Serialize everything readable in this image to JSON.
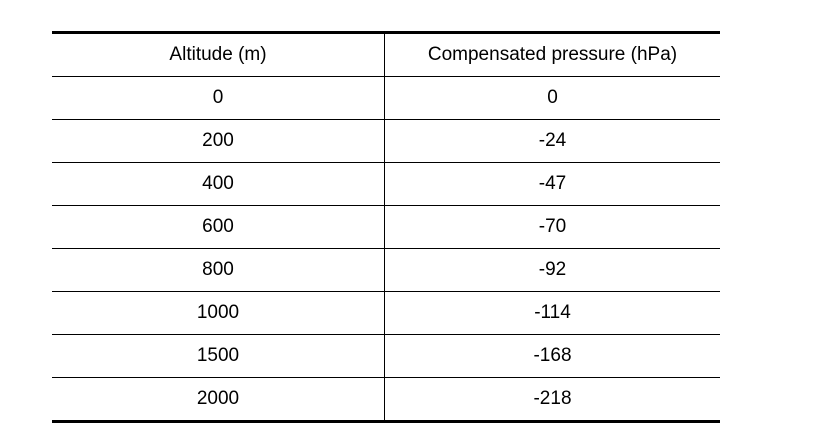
{
  "table": {
    "header": [
      "Altitude (m)",
      "Compensated pressure (hPa)"
    ],
    "rows": [
      [
        0,
        0
      ],
      [
        200,
        -24
      ],
      [
        400,
        -47
      ],
      [
        600,
        -70
      ],
      [
        800,
        -92
      ],
      [
        1000,
        -114
      ],
      [
        1500,
        -168
      ],
      [
        2000,
        -218
      ]
    ]
  }
}
